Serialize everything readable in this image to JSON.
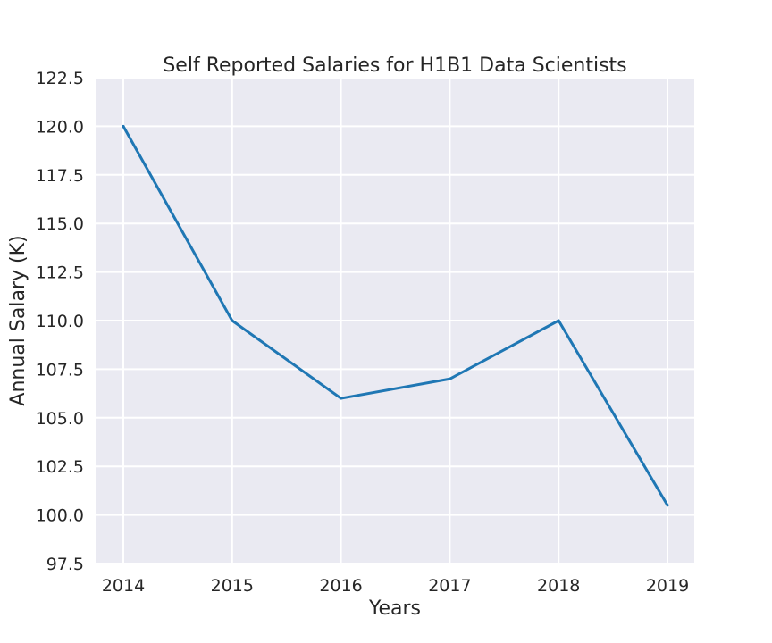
{
  "chart_data": {
    "type": "line",
    "title": "Self Reported  Salaries for H1B1 Data Scientists",
    "xlabel": "Years",
    "ylabel": "Annual Salary (K)",
    "categories": [
      "2014",
      "2015",
      "2016",
      "2017",
      "2018",
      "2019"
    ],
    "series": [
      {
        "values": [
          120.0,
          110.0,
          106.0,
          107.0,
          110.0,
          100.5
        ]
      }
    ],
    "yticks": [
      "97.5",
      "100.0",
      "102.5",
      "105.0",
      "107.5",
      "110.0",
      "112.5",
      "115.0",
      "117.5",
      "120.0",
      "122.5"
    ],
    "ylim": [
      97.5,
      122.5
    ],
    "grid": true,
    "legend": "none",
    "colors": {
      "background": "#eaeaf2",
      "line": "#1f77b4",
      "grid": "#ffffff"
    }
  }
}
